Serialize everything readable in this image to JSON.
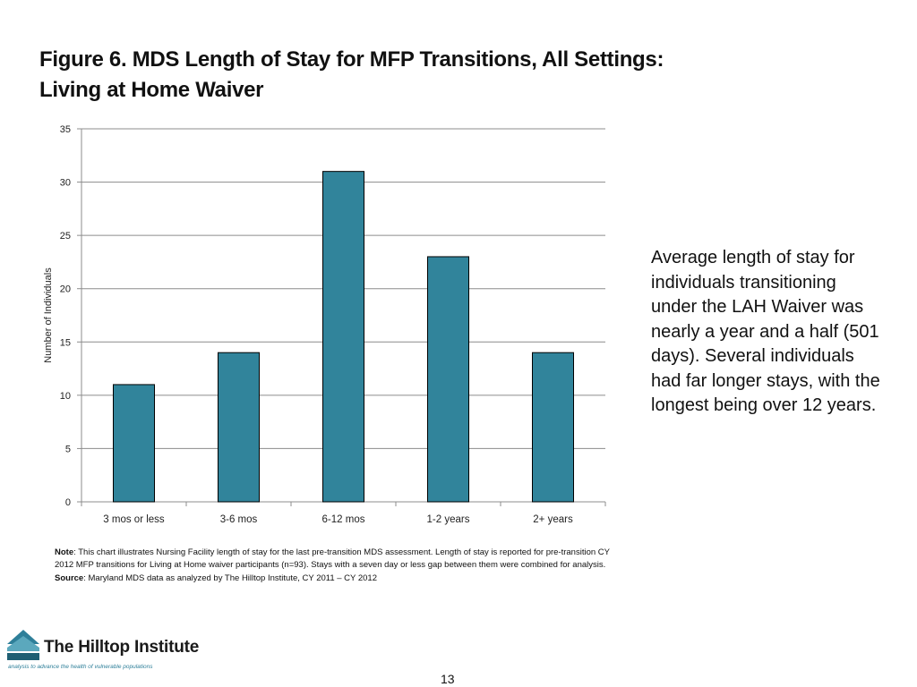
{
  "title": {
    "line1": "Figure 6. MDS Length of Stay for MFP Transitions, All Settings:",
    "line2": "Living at Home Waiver"
  },
  "chart_data": {
    "type": "bar",
    "title": "",
    "xlabel": "",
    "ylabel": "Number of Individuals",
    "categories": [
      "3 mos or less",
      "3-6 mos",
      "6-12 mos",
      "1-2 years",
      "2+ years"
    ],
    "values": [
      11,
      14,
      31,
      23,
      14
    ],
    "ylim": [
      0,
      35
    ],
    "yticks": [
      0,
      5,
      10,
      15,
      20,
      25,
      30,
      35
    ],
    "grid": true,
    "bar_color": "#31849b"
  },
  "side_note": "Average length of stay for individuals transitioning under the LAH Waiver was nearly a year and a half (501 days). Several individuals had far longer stays, with the longest being over 12 years.",
  "notes": {
    "note_label": "Note",
    "note_text": ": This chart illustrates Nursing Facility length of stay for the last pre-transition MDS assessment.  Length of stay is reported for pre-transition CY 2012 MFP transitions for Living at Home waiver participants (n=93).    Stays with a seven day or less gap between them were combined for analysis.",
    "source_label": "Source",
    "source_text": ": Maryland MDS data as analyzed by The Hilltop Institute, CY 2011 – CY 2012"
  },
  "logo": {
    "name": "The Hilltop Institute",
    "tagline": "analysis to advance the health of vulnerable populations"
  },
  "page_number": "13"
}
